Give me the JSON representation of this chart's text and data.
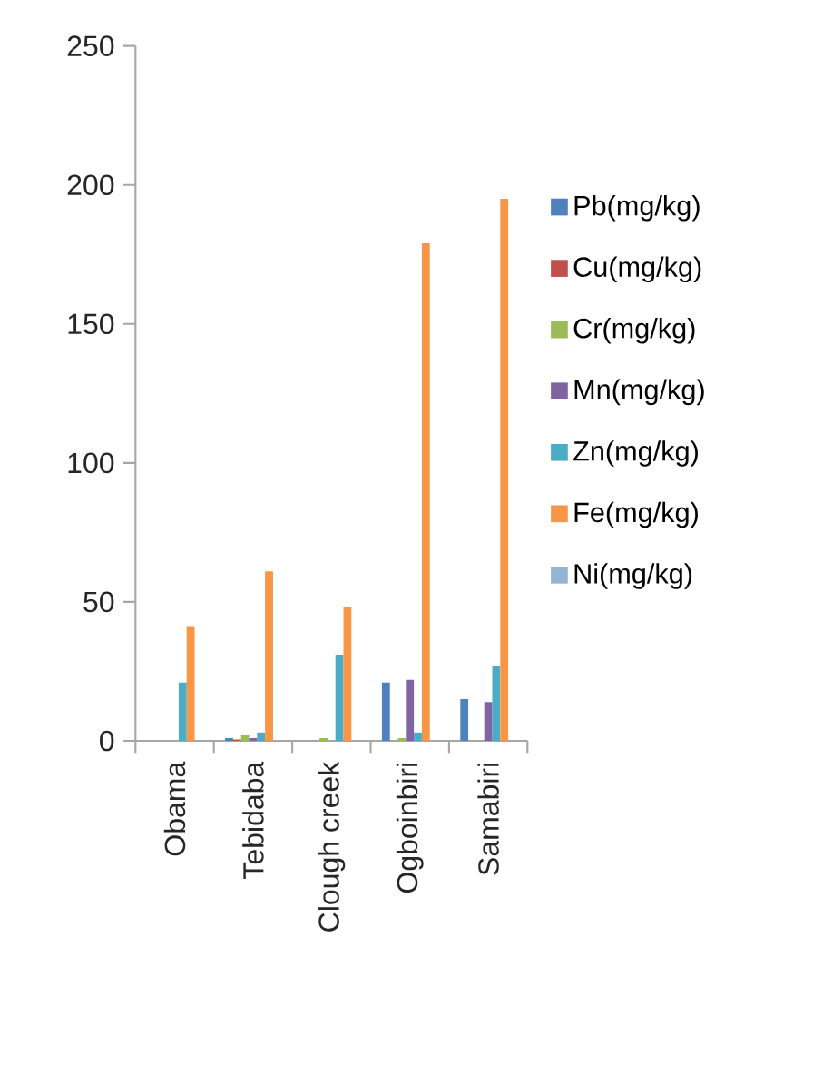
{
  "chart_data": {
    "type": "bar",
    "categories": [
      "Obama",
      "Tebidaba",
      "Clough creek",
      "Ogboinbiri",
      "Samabiri"
    ],
    "series": [
      {
        "name": "Pb(mg/kg)",
        "color": "#4f81bd",
        "values": [
          0,
          1,
          0,
          21,
          15
        ]
      },
      {
        "name": "Cu(mg/kg)",
        "color": "#c0504d",
        "values": [
          0,
          0.5,
          0,
          0,
          0
        ]
      },
      {
        "name": "Cr(mg/kg)",
        "color": "#9bbb59",
        "values": [
          0,
          2,
          1,
          1,
          0
        ]
      },
      {
        "name": "Mn(mg/kg)",
        "color": "#8064a2",
        "values": [
          0,
          1,
          0,
          22,
          14
        ]
      },
      {
        "name": "Zn(mg/kg)",
        "color": "#4bacc6",
        "values": [
          21,
          3,
          31,
          3,
          27
        ]
      },
      {
        "name": "Fe(mg/kg)",
        "color": "#f79646",
        "values": [
          41,
          61,
          48,
          179,
          195
        ]
      },
      {
        "name": "Ni(mg/kg)",
        "color": "#95b3d7",
        "values": [
          0,
          0,
          null,
          null,
          null
        ]
      }
    ],
    "ylim": [
      0,
      250
    ],
    "yticks": [
      0,
      50,
      100,
      150,
      200,
      250
    ],
    "legend": "right",
    "grid": false
  }
}
